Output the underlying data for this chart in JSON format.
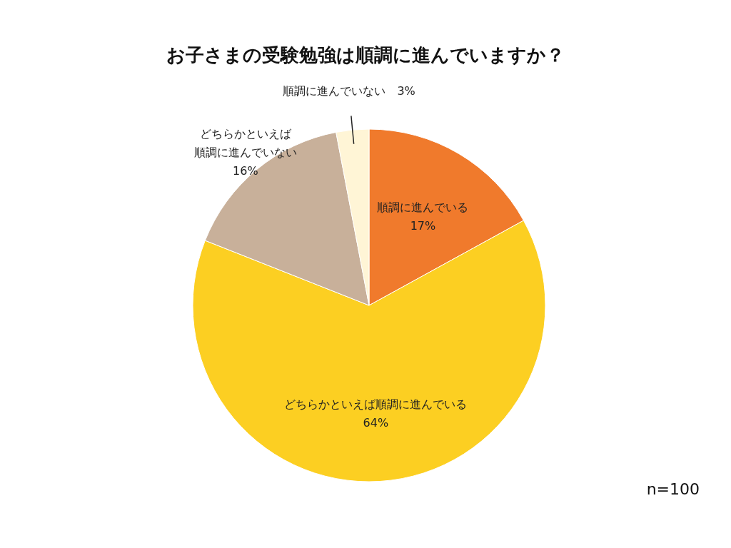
{
  "chart_data": {
    "type": "pie",
    "title": "お子さまの受験勉強は順調に進んでいますか？",
    "categories": [
      "順調に進んでいる",
      "どちらかといえば順調に進んでいる",
      "どちらかといえば順調に進んでいない",
      "順調に進んでいない"
    ],
    "values": [
      17,
      64,
      16,
      3
    ],
    "colors": [
      "#f07a2c",
      "#fccf22",
      "#c8b09a",
      "#fff5d6"
    ],
    "value_labels": [
      "17%",
      "64%",
      "16%",
      "3%"
    ],
    "annotations": [
      "n=100"
    ],
    "legend": false
  }
}
